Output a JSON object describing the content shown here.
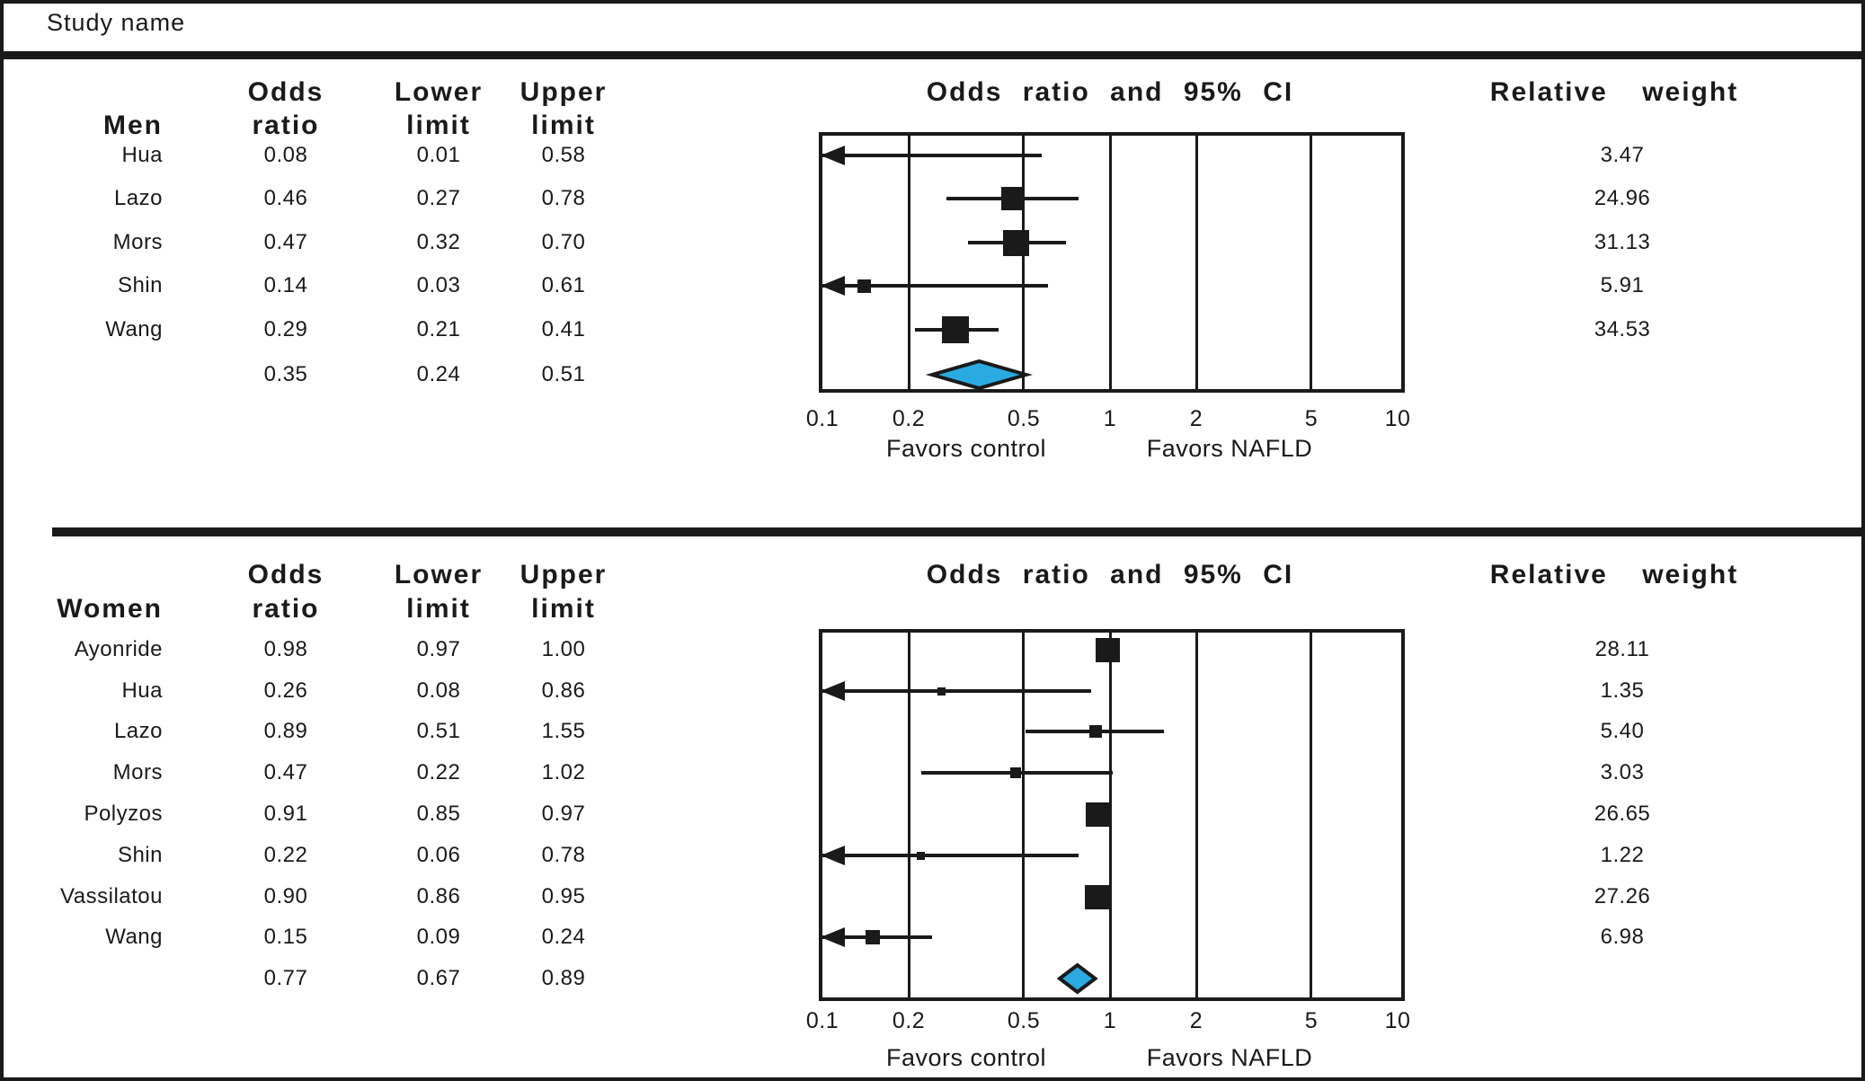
{
  "study_name_label": "Study name",
  "diamond_color": "#29ABE2",
  "chart_data": [
    {
      "type": "scatter",
      "subtype": "forest-plot",
      "group_label": "Men",
      "title": "Odds ratio and 95% CI",
      "column_headers": {
        "odds": "Odds ratio",
        "lower": "Lower limit",
        "upper": "Upper limit",
        "weight": "Relative weight"
      },
      "x_axis": {
        "scale": "log",
        "lim": [
          0.1,
          10
        ],
        "ticks": [
          "0.1",
          "0.2",
          "0.5",
          "1",
          "2",
          "5",
          "10"
        ],
        "gridlines": [
          0.2,
          0.5,
          1,
          2,
          5
        ],
        "left_label": "Favors control",
        "right_label": "Favors NAFLD"
      },
      "studies": [
        {
          "name": "Hua",
          "odds_ratio": 0.08,
          "lower_limit": 0.01,
          "upper_limit": 0.58,
          "relative_weight": 3.47
        },
        {
          "name": "Lazo",
          "odds_ratio": 0.46,
          "lower_limit": 0.27,
          "upper_limit": 0.78,
          "relative_weight": 24.96
        },
        {
          "name": "Mors",
          "odds_ratio": 0.47,
          "lower_limit": 0.32,
          "upper_limit": 0.7,
          "relative_weight": 31.13
        },
        {
          "name": "Shin",
          "odds_ratio": 0.14,
          "lower_limit": 0.03,
          "upper_limit": 0.61,
          "relative_weight": 5.91
        },
        {
          "name": "Wang",
          "odds_ratio": 0.29,
          "lower_limit": 0.21,
          "upper_limit": 0.41,
          "relative_weight": 34.53
        }
      ],
      "summary": {
        "odds_ratio": 0.35,
        "lower_limit": 0.24,
        "upper_limit": 0.51
      }
    },
    {
      "type": "scatter",
      "subtype": "forest-plot",
      "group_label": "Women",
      "title": "Odds ratio and 95% CI",
      "column_headers": {
        "odds": "Odds ratio",
        "lower": "Lower limit",
        "upper": "Upper limit",
        "weight": "Relative weight"
      },
      "x_axis": {
        "scale": "log",
        "lim": [
          0.1,
          10
        ],
        "ticks": [
          "0.1",
          "0.2",
          "0.5",
          "1",
          "2",
          "5",
          "10"
        ],
        "gridlines": [
          0.2,
          0.5,
          1,
          2,
          5
        ],
        "left_label": "Favors control",
        "right_label": "Favors NAFLD"
      },
      "studies": [
        {
          "name": "Ayonride",
          "odds_ratio": 0.98,
          "lower_limit": 0.97,
          "upper_limit": 1.0,
          "relative_weight": 28.11
        },
        {
          "name": "Hua",
          "odds_ratio": 0.26,
          "lower_limit": 0.08,
          "upper_limit": 0.86,
          "relative_weight": 1.35
        },
        {
          "name": "Lazo",
          "odds_ratio": 0.89,
          "lower_limit": 0.51,
          "upper_limit": 1.55,
          "relative_weight": 5.4
        },
        {
          "name": "Mors",
          "odds_ratio": 0.47,
          "lower_limit": 0.22,
          "upper_limit": 1.02,
          "relative_weight": 3.03
        },
        {
          "name": "Polyzos",
          "odds_ratio": 0.91,
          "lower_limit": 0.85,
          "upper_limit": 0.97,
          "relative_weight": 26.65
        },
        {
          "name": "Shin",
          "odds_ratio": 0.22,
          "lower_limit": 0.06,
          "upper_limit": 0.78,
          "relative_weight": 1.22
        },
        {
          "name": "Vassilatou",
          "odds_ratio": 0.9,
          "lower_limit": 0.86,
          "upper_limit": 0.95,
          "relative_weight": 27.26
        },
        {
          "name": "Wang",
          "odds_ratio": 0.15,
          "lower_limit": 0.09,
          "upper_limit": 0.24,
          "relative_weight": 6.98
        }
      ],
      "summary": {
        "odds_ratio": 0.77,
        "lower_limit": 0.67,
        "upper_limit": 0.89
      }
    }
  ]
}
